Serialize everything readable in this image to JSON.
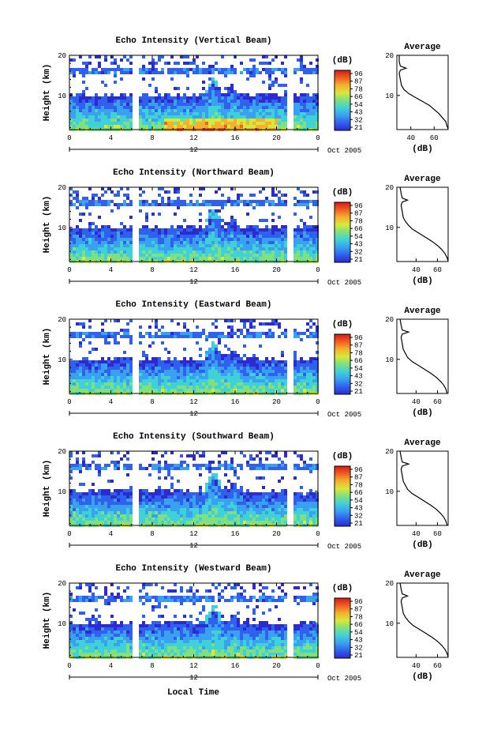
{
  "chart_data": {
    "type": "heatmap",
    "figure_xlabel": "Local Time",
    "date_label": "Oct 2005",
    "colorbar_unit": "(dB)",
    "colorbar_ticks": [
      "96",
      "87",
      "78",
      "66",
      "54",
      "43",
      "32",
      "21"
    ],
    "colorscale": [
      "#2b2bd0",
      "#3060ee",
      "#3aa0f0",
      "#40d0d8",
      "#7ee080",
      "#d8e83a",
      "#f4b030",
      "#f06020",
      "#d81818"
    ],
    "xlim": [
      0,
      24
    ],
    "xticks": [
      "0",
      "4",
      "8",
      "12",
      "16",
      "20",
      "0"
    ],
    "day_tick": "12",
    "ylabel": "Height (km)",
    "ylim": [
      1.5,
      20
    ],
    "yticks": [
      "20",
      "10"
    ],
    "data_gaps_hours": [
      [
        6.0,
        6.6
      ],
      [
        21.0,
        21.6
      ]
    ],
    "panels": [
      {
        "title": "Echo Intensity (Vertical Beam)",
        "profile_title": "Average",
        "profile_xlabel": "(dB)",
        "profile_xticks": [
          "40",
          "60"
        ],
        "profile_xlim": [
          28,
          72
        ],
        "profile": [
          [
            72,
            1.6
          ],
          [
            71,
            2.5
          ],
          [
            70,
            3.5
          ],
          [
            67,
            4.5
          ],
          [
            64,
            5.5
          ],
          [
            60,
            6.5
          ],
          [
            56,
            7.5
          ],
          [
            50,
            8.5
          ],
          [
            44,
            9.5
          ],
          [
            38,
            10.5
          ],
          [
            34,
            11.5
          ],
          [
            32,
            12.5
          ],
          [
            31,
            14
          ],
          [
            30,
            15.5
          ],
          [
            31,
            16.3
          ],
          [
            36,
            16.8
          ],
          [
            31,
            17.3
          ],
          [
            30,
            18.5
          ],
          [
            30,
            20
          ]
        ]
      },
      {
        "title": "Echo Intensity (Northward Beam)",
        "profile_title": "Average",
        "profile_xlabel": "(dB)",
        "profile_xticks": [
          "40",
          "60"
        ],
        "profile_xlim": [
          22,
          70
        ],
        "profile": [
          [
            70,
            1.6
          ],
          [
            69,
            2.5
          ],
          [
            67,
            3.5
          ],
          [
            64,
            4.5
          ],
          [
            60,
            5.5
          ],
          [
            55,
            6.5
          ],
          [
            49,
            7.5
          ],
          [
            43,
            8.5
          ],
          [
            37,
            9.5
          ],
          [
            33,
            10.5
          ],
          [
            30,
            11.5
          ],
          [
            28,
            12.5
          ],
          [
            27,
            14
          ],
          [
            26,
            15.5
          ],
          [
            27,
            16.3
          ],
          [
            32,
            16.8
          ],
          [
            27,
            17.3
          ],
          [
            26,
            18.5
          ],
          [
            25,
            20
          ]
        ]
      },
      {
        "title": "Echo Intensity (Eastward Beam)",
        "profile_title": "Average",
        "profile_xlabel": "(dB)",
        "profile_xticks": [
          "40",
          "60"
        ],
        "profile_xlim": [
          22,
          70
        ],
        "profile": [
          [
            69,
            1.6
          ],
          [
            68,
            2.5
          ],
          [
            66,
            3.5
          ],
          [
            63,
            4.5
          ],
          [
            59,
            5.5
          ],
          [
            54,
            6.5
          ],
          [
            48,
            7.5
          ],
          [
            42,
            8.5
          ],
          [
            36,
            9.5
          ],
          [
            32,
            10.5
          ],
          [
            30,
            11.5
          ],
          [
            28,
            12.5
          ],
          [
            27,
            14
          ],
          [
            26,
            15.5
          ],
          [
            27,
            16.3
          ],
          [
            33,
            16.8
          ],
          [
            27,
            17.3
          ],
          [
            26,
            18.5
          ],
          [
            25,
            20
          ]
        ]
      },
      {
        "title": "Echo Intensity (Southward Beam)",
        "profile_title": "Average",
        "profile_xlabel": "(dB)",
        "profile_xticks": [
          "40",
          "60"
        ],
        "profile_xlim": [
          22,
          70
        ],
        "profile": [
          [
            69,
            1.6
          ],
          [
            68,
            2.5
          ],
          [
            66,
            3.5
          ],
          [
            63,
            4.5
          ],
          [
            59,
            5.5
          ],
          [
            54,
            6.5
          ],
          [
            48,
            7.5
          ],
          [
            42,
            8.5
          ],
          [
            36,
            9.5
          ],
          [
            32,
            10.5
          ],
          [
            30,
            11.5
          ],
          [
            28,
            12.5
          ],
          [
            27,
            14
          ],
          [
            26,
            15.5
          ],
          [
            27,
            16.3
          ],
          [
            33,
            16.8
          ],
          [
            27,
            17.3
          ],
          [
            26,
            18.5
          ],
          [
            25,
            20
          ]
        ]
      },
      {
        "title": "Echo Intensity (Westward Beam)",
        "profile_title": "Average",
        "profile_xlabel": "(dB)",
        "profile_xticks": [
          "40",
          "60"
        ],
        "profile_xlim": [
          22,
          70
        ],
        "profile": [
          [
            70,
            1.6
          ],
          [
            69,
            2.5
          ],
          [
            67,
            3.5
          ],
          [
            64,
            4.5
          ],
          [
            60,
            5.5
          ],
          [
            55,
            6.5
          ],
          [
            49,
            7.5
          ],
          [
            43,
            8.5
          ],
          [
            37,
            9.5
          ],
          [
            33,
            10.5
          ],
          [
            30,
            11.5
          ],
          [
            28,
            12.5
          ],
          [
            27,
            14
          ],
          [
            26,
            15.5
          ],
          [
            27,
            16.3
          ],
          [
            32,
            16.8
          ],
          [
            27,
            17.3
          ],
          [
            26,
            18.5
          ],
          [
            25,
            20
          ]
        ]
      }
    ]
  }
}
